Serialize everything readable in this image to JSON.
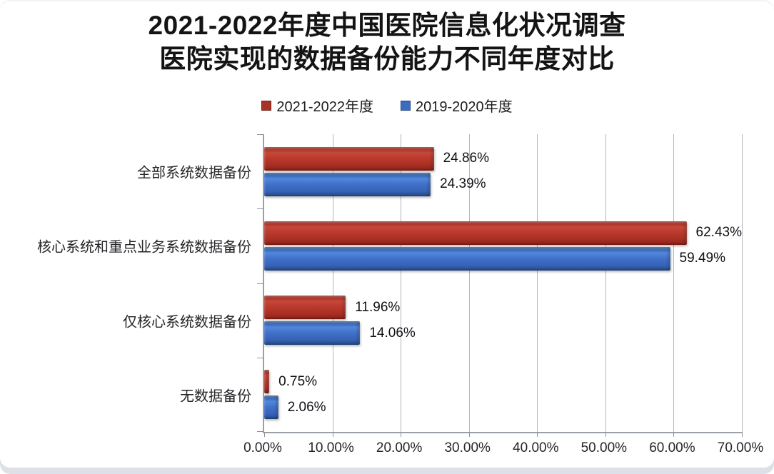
{
  "title": {
    "line1": "2021-2022年度中国医院信息化状况调查",
    "line2": "医院实现的数据备份能力不同年度对比"
  },
  "legend": [
    {
      "label": "2021-2022年度",
      "color": "#a93226"
    },
    {
      "label": "2019-2020年度",
      "color": "#3a6cc4"
    }
  ],
  "chart_data": {
    "type": "bar",
    "orientation": "horizontal",
    "title": "2021-2022年度中国医院信息化状况调查 医院实现的数据备份能力不同年度对比",
    "categories": [
      "全部系统数据备份",
      "核心系统和重点业务系统数据备份",
      "仅核心系统数据备份",
      "无数据备份"
    ],
    "series": [
      {
        "name": "2021-2022年度",
        "color": "#a93226",
        "values": [
          24.86,
          62.43,
          11.96,
          0.75
        ]
      },
      {
        "name": "2019-2020年度",
        "color": "#3a6cc4",
        "values": [
          24.39,
          59.49,
          14.06,
          2.06
        ]
      }
    ],
    "value_labels": [
      [
        "24.86%",
        "62.43%",
        "11.96%",
        "0.75%"
      ],
      [
        "24.39%",
        "59.49%",
        "14.06%",
        "2.06%"
      ]
    ],
    "x_ticks": [
      "0.00%",
      "10.00%",
      "20.00%",
      "30.00%",
      "40.00%",
      "50.00%",
      "60.00%",
      "70.00%"
    ],
    "xlim": [
      0,
      70
    ],
    "xlabel": "",
    "ylabel": "",
    "grid": true,
    "legend_position": "top"
  }
}
